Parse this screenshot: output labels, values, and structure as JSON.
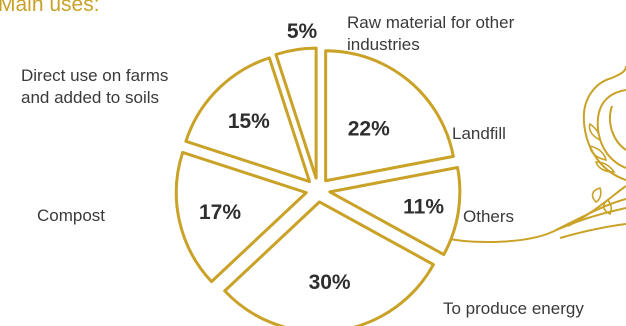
{
  "heading": "Main uses:",
  "colors": {
    "gold": "#c9a227",
    "text": "#3a3a3a",
    "fill": "#ffffff"
  },
  "chart_data": {
    "type": "pie",
    "exploded": true,
    "slices": [
      {
        "label_lines": [
          "Landfill"
        ],
        "value": 22,
        "value_label": "22%"
      },
      {
        "label_lines": [
          "Others"
        ],
        "value": 11,
        "value_label": "11%"
      },
      {
        "label_lines": [
          "To produce energy"
        ],
        "value": 30,
        "value_label": "30%"
      },
      {
        "label_lines": [
          "Compost"
        ],
        "value": 17,
        "value_label": "17%"
      },
      {
        "label_lines": [
          "Direct use on farms",
          "and added to soils"
        ],
        "value": 15,
        "value_label": "15%"
      },
      {
        "label_lines": [
          "Raw material for other",
          "industries"
        ],
        "value": 5,
        "value_label": "5%"
      }
    ]
  }
}
